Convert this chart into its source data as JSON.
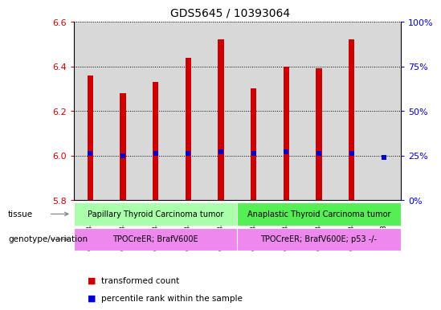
{
  "title": "GDS5645 / 10393064",
  "samples": [
    "GSM1348733",
    "GSM1348734",
    "GSM1348735",
    "GSM1348736",
    "GSM1348737",
    "GSM1348738",
    "GSM1348739",
    "GSM1348740",
    "GSM1348741",
    "GSM1348742"
  ],
  "transformed_count": [
    6.36,
    6.28,
    6.33,
    6.44,
    6.52,
    6.3,
    6.4,
    6.39,
    6.52,
    5.8
  ],
  "percentile_rank": [
    26,
    25,
    26,
    26,
    27,
    26,
    27,
    26,
    26,
    24
  ],
  "ylim_left": [
    5.8,
    6.6
  ],
  "ylim_right": [
    0,
    100
  ],
  "yticks_left": [
    5.8,
    6.0,
    6.2,
    6.4,
    6.6
  ],
  "yticks_right": [
    0,
    25,
    50,
    75,
    100
  ],
  "bar_color": "#cc0000",
  "percentile_color": "#0000cc",
  "bar_bottom": 5.8,
  "tissue_labels": [
    {
      "text": "Papillary Thyroid Carcinoma tumor",
      "start": 0,
      "end": 4,
      "color": "#aaffaa"
    },
    {
      "text": "Anaplastic Thyroid Carcinoma tumor",
      "start": 5,
      "end": 9,
      "color": "#55ee55"
    }
  ],
  "genotype_labels": [
    {
      "text": "TPOCreER; BrafV600E",
      "start": 0,
      "end": 4,
      "color": "#ee88ee"
    },
    {
      "text": "TPOCreER; BrafV600E; p53 -/-",
      "start": 5,
      "end": 9,
      "color": "#ee88ee"
    }
  ],
  "legend_items": [
    {
      "label": "transformed count",
      "color": "#cc0000"
    },
    {
      "label": "percentile rank within the sample",
      "color": "#0000cc"
    }
  ],
  "background_color": "#ffffff",
  "tick_color_left": "#cc0000",
  "tick_color_right": "#0000cc",
  "col_bg_color": "#d8d8d8",
  "plot_bg_color": "#ffffff"
}
